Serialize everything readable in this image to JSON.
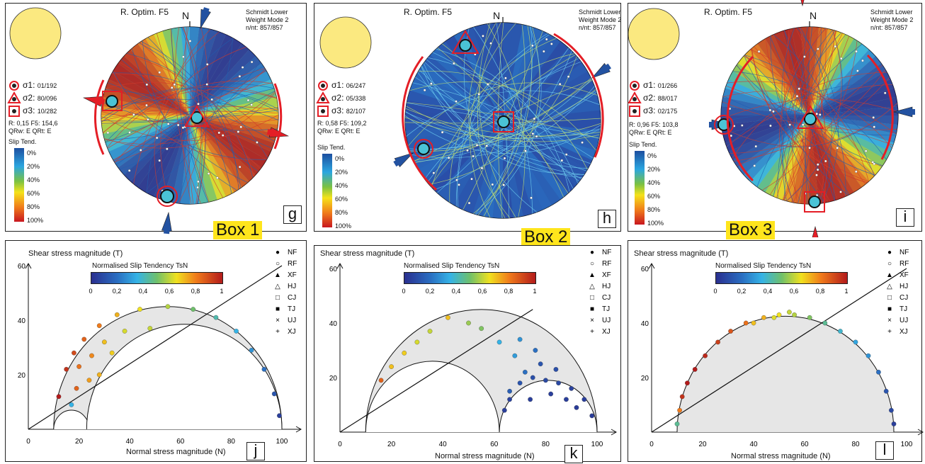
{
  "colors": {
    "red": "#e41e26",
    "blue": "#2352a1",
    "teal": "#4ac3d6",
    "yellow": "#fbe980",
    "box_label_bg": "#ffe51c"
  },
  "stereonets": [
    {
      "title": "R. Optim. F5",
      "north": "N",
      "info": [
        "Schmidt Lower",
        "Weight Mode 2",
        "n/nt: 857/857"
      ],
      "s1": {
        "sym": "σ1:",
        "val": "01/192"
      },
      "s2": {
        "sym": "σ2:",
        "val": "80/096"
      },
      "s3": {
        "sym": "σ3:",
        "val": "10/282"
      },
      "r_line": "R: 0,15   F5: 154,6",
      "q_line": "QRw: E   QRt: E",
      "cb_title": "Slip Tend.",
      "cb_ticks": [
        "0%",
        "20%",
        "40%",
        "60%",
        "80%",
        "100%"
      ],
      "letter": "g",
      "box": "Box 1",
      "icon": "compression-NS-icon"
    },
    {
      "title": "R. Optim. F5",
      "north": "N",
      "info": [
        "Schmidt Lower",
        "Weight Mode 2",
        "n/nt: 857/857"
      ],
      "s1": {
        "sym": "σ1:",
        "val": "06/247"
      },
      "s2": {
        "sym": "σ2:",
        "val": "05/338"
      },
      "s3": {
        "sym": "σ3:",
        "val": "82/107"
      },
      "r_line": "R: 0,58   F5: 109,2",
      "q_line": "QRw: E   QRt: E",
      "cb_title": "Slip Tend.",
      "cb_ticks": [
        "0%",
        "20%",
        "40%",
        "60%",
        "80%",
        "100%"
      ],
      "letter": "h",
      "box": "Box 2",
      "icon": "compression-NE-icon"
    },
    {
      "title": "R. Optim. F5",
      "north": "N",
      "info": [
        "Schmidt Lower",
        "Weight Mode 2",
        "n/nt: 857/857"
      ],
      "s1": {
        "sym": "σ1:",
        "val": "01/266"
      },
      "s2": {
        "sym": "σ2:",
        "val": "88/017"
      },
      "s3": {
        "sym": "σ3:",
        "val": "02/175"
      },
      "r_line": "R: 0,96   F5: 103,8",
      "q_line": "QRw: E   QRt: E",
      "cb_title": "Slip Tend.",
      "cb_ticks": [
        "0%",
        "20%",
        "40%",
        "60%",
        "80%",
        "100%"
      ],
      "letter": "i",
      "box": "Box 3",
      "icon": "extension-NS-icon"
    }
  ],
  "mohr_legend": [
    "NF",
    "RF",
    "XF",
    "HJ",
    "CJ",
    "TJ",
    "UJ",
    "XJ"
  ],
  "chart_data": [
    {
      "type": "scatter",
      "ylabel": "Shear stress magnitude (T)",
      "xlabel": "Normal stress magnitude (N)",
      "colorbar_title": "Normalised Slip Tendency TsN",
      "colorbar_ticks": [
        "0",
        "0,2",
        "0,4",
        "0,6",
        "0,8",
        "1"
      ],
      "xlim": [
        0,
        105
      ],
      "ylim": [
        0,
        65
      ],
      "xticks": [
        "0",
        "20",
        "40",
        "60",
        "80",
        "100"
      ],
      "yticks": [
        "20",
        "40",
        "60"
      ],
      "circles": [
        {
          "c": 55,
          "r": 45
        },
        {
          "c": 17,
          "r": 7
        },
        {
          "c": 61.5,
          "r": 38.5
        }
      ],
      "friction_line": {
        "x": [
          0,
          100
        ],
        "y": [
          0,
          60
        ]
      },
      "letter": "j",
      "points": [
        [
          12,
          12,
          1.0
        ],
        [
          15,
          22,
          0.95
        ],
        [
          18,
          28,
          0.9
        ],
        [
          22,
          33,
          0.85
        ],
        [
          28,
          38,
          0.8
        ],
        [
          35,
          42,
          0.72
        ],
        [
          44,
          44,
          0.65
        ],
        [
          55,
          45,
          0.58
        ],
        [
          65,
          44,
          0.5
        ],
        [
          74,
          41,
          0.42
        ],
        [
          82,
          36,
          0.35
        ],
        [
          88,
          29,
          0.28
        ],
        [
          93,
          22,
          0.2
        ],
        [
          97,
          13,
          0.12
        ],
        [
          99,
          5,
          0.05
        ],
        [
          20,
          23,
          0.82
        ],
        [
          25,
          27,
          0.78
        ],
        [
          30,
          32,
          0.7
        ],
        [
          38,
          36,
          0.62
        ],
        [
          48,
          37,
          0.6
        ],
        [
          17,
          9,
          0.35
        ],
        [
          19,
          15,
          0.85
        ],
        [
          24,
          18,
          0.75
        ],
        [
          28,
          20,
          0.72
        ],
        [
          33,
          28,
          0.68
        ]
      ]
    },
    {
      "type": "scatter",
      "ylabel": "Shear stress magnitude (T)",
      "xlabel": "Normal stress magnitude (N)",
      "colorbar_title": "Normalised Slip Tendency TsN",
      "colorbar_ticks": [
        "0",
        "0,2",
        "0,4",
        "0,6",
        "0,8",
        "1"
      ],
      "xlim": [
        0,
        105
      ],
      "ylim": [
        0,
        65
      ],
      "xticks": [
        "0",
        "20",
        "40",
        "60",
        "80",
        "100"
      ],
      "yticks": [
        "20",
        "40",
        "60"
      ],
      "circles": [
        {
          "c": 55,
          "r": 45
        },
        {
          "c": 36,
          "r": 26
        },
        {
          "c": 81,
          "r": 19
        }
      ],
      "friction_line": {
        "x": [
          0,
          75
        ],
        "y": [
          0,
          45
        ]
      },
      "letter": "k",
      "points": [
        [
          16,
          19,
          0.85
        ],
        [
          20,
          24,
          0.7
        ],
        [
          25,
          29,
          0.68
        ],
        [
          30,
          33,
          0.62
        ],
        [
          35,
          37,
          0.6
        ],
        [
          42,
          42,
          0.7
        ],
        [
          50,
          40,
          0.55
        ],
        [
          55,
          38,
          0.52
        ],
        [
          62,
          33,
          0.35
        ],
        [
          68,
          28,
          0.3
        ],
        [
          72,
          22,
          0.2
        ],
        [
          66,
          15,
          0.15
        ],
        [
          70,
          18,
          0.12
        ],
        [
          75,
          20,
          0.1
        ],
        [
          80,
          19,
          0.08
        ],
        [
          85,
          18,
          0.08
        ],
        [
          90,
          16,
          0.06
        ],
        [
          95,
          12,
          0.05
        ],
        [
          98,
          6,
          0.04
        ],
        [
          64,
          8,
          0.05
        ],
        [
          66,
          12,
          0.06
        ],
        [
          74,
          12,
          0.05
        ],
        [
          82,
          14,
          0.05
        ],
        [
          88,
          12,
          0.05
        ],
        [
          92,
          9,
          0.04
        ],
        [
          78,
          25,
          0.12
        ],
        [
          84,
          23,
          0.1
        ],
        [
          76,
          30,
          0.2
        ],
        [
          70,
          34,
          0.28
        ]
      ]
    },
    {
      "type": "scatter",
      "ylabel": "Shear stress magnitude (T)",
      "xlabel": "Normal stress magnitude (N)",
      "colorbar_title": "Normalised Slip Tendency TsN",
      "colorbar_ticks": [
        "0",
        "0,2",
        "0,4",
        "0,6",
        "0,8",
        "1"
      ],
      "xlim": [
        0,
        105
      ],
      "ylim": [
        0,
        65
      ],
      "xticks": [
        "0",
        "20",
        "40",
        "60",
        "80",
        "100"
      ],
      "yticks": [
        "20",
        "40",
        "60"
      ],
      "circles": [
        {
          "c": 52.5,
          "r": 42.5
        }
      ],
      "friction_line": {
        "x": [
          0,
          100
        ],
        "y": [
          0,
          60
        ]
      },
      "letter": "l",
      "points": [
        [
          10,
          3,
          0.45
        ],
        [
          11,
          8,
          0.8
        ],
        [
          12,
          13,
          0.95
        ],
        [
          14,
          18,
          1.0
        ],
        [
          17,
          23,
          1.0
        ],
        [
          21,
          28,
          0.97
        ],
        [
          26,
          33,
          0.92
        ],
        [
          31,
          37,
          0.88
        ],
        [
          37,
          40,
          0.82
        ],
        [
          44,
          42,
          0.72
        ],
        [
          50,
          43,
          0.65
        ],
        [
          56,
          43,
          0.58
        ],
        [
          62,
          42,
          0.52
        ],
        [
          68,
          40,
          0.45
        ],
        [
          74,
          37,
          0.38
        ],
        [
          80,
          33,
          0.32
        ],
        [
          85,
          28,
          0.28
        ],
        [
          89,
          22,
          0.2
        ],
        [
          92,
          15,
          0.12
        ],
        [
          94,
          8,
          0.08
        ],
        [
          95,
          3,
          0.05
        ],
        [
          40,
          40,
          0.7
        ],
        [
          54,
          44,
          0.6
        ],
        [
          48,
          42,
          0.63
        ]
      ]
    }
  ]
}
